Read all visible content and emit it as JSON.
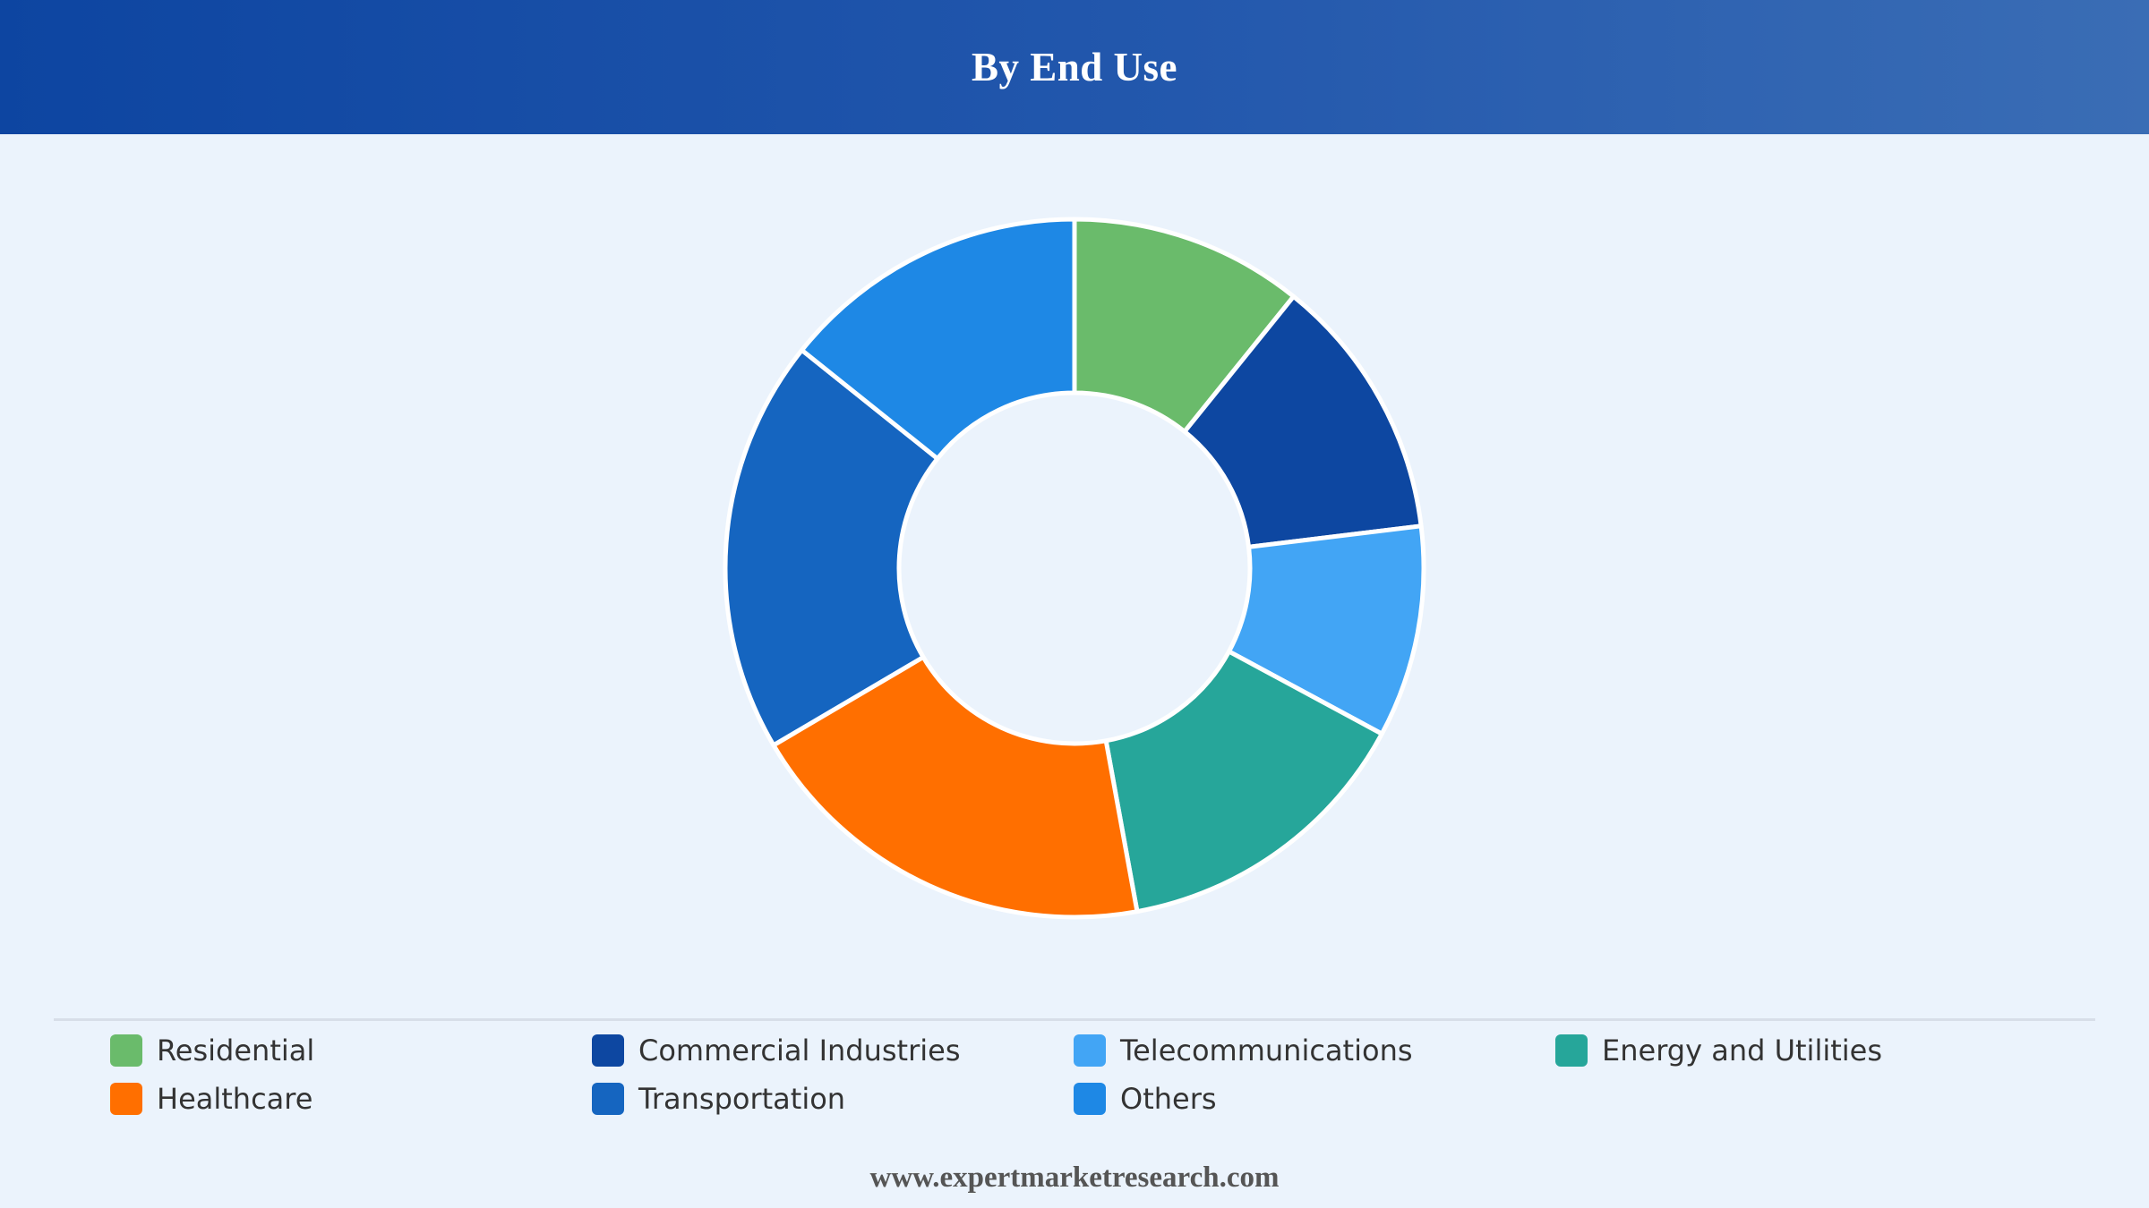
{
  "header": {
    "title": "By End Use"
  },
  "chart_data": {
    "type": "pie",
    "donut": true,
    "title": "By End Use",
    "legend_position": "bottom",
    "categories": [
      "Residential",
      "Commercial Industries",
      "Telecommunications",
      "Energy and Utilities",
      "Healthcare",
      "Transportation",
      "Others"
    ],
    "values": [
      10.9,
      12.4,
      9.9,
      14.4,
      19.6,
      19.4,
      14.4
    ],
    "unit": "%",
    "colors": [
      "#6abb6b",
      "#0d47a1",
      "#42a5f5",
      "#26a69a",
      "#ff6f00",
      "#1565c0",
      "#1e88e5"
    ]
  },
  "footer": {
    "text": "www.expertmarketresearch.com"
  }
}
